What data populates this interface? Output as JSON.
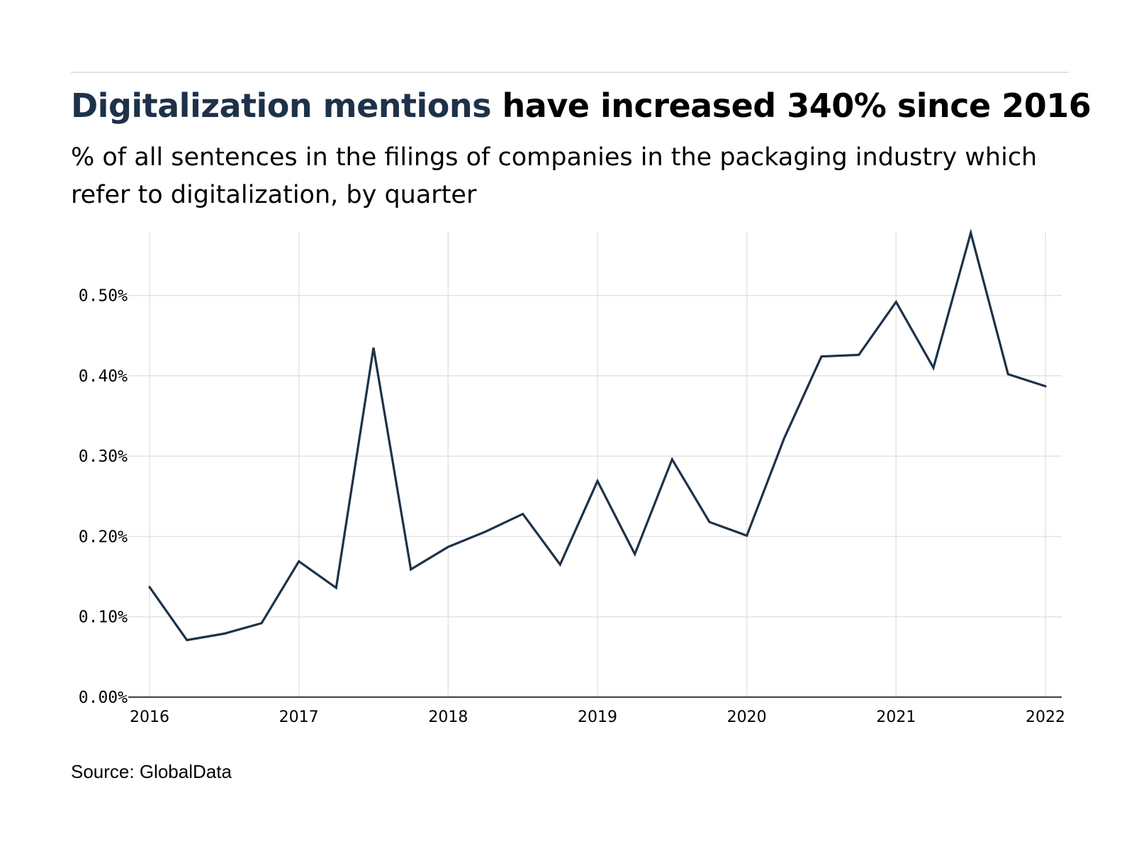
{
  "header": {
    "title_highlight": "Digitalization mentions",
    "title_rest": " have increased 340% since 2016",
    "subtitle": "% of all sentences in the filings of companies in the packaging industry which refer to digitalization, by quarter"
  },
  "footer": {
    "source": "Source: GlobalData"
  },
  "colors": {
    "line": "#1d3249",
    "grid": "#e3e3e3",
    "axis": "#000000"
  },
  "chart_data": {
    "type": "line",
    "title": "",
    "xlabel": "",
    "ylabel": "",
    "xlim": [
      2016,
      2022
    ],
    "ylim": [
      0,
      0.58
    ],
    "grid": true,
    "y_ticks": [
      0,
      0.1,
      0.2,
      0.3,
      0.4,
      0.5
    ],
    "y_tick_labels": [
      "0.00%",
      "0.10%",
      "0.20%",
      "0.30%",
      "0.40%",
      "0.50%"
    ],
    "x_ticks": [
      2016,
      2017,
      2018,
      2019,
      2020,
      2021,
      2022
    ],
    "x_tick_labels": [
      "2016",
      "2017",
      "2018",
      "2019",
      "2020",
      "2021",
      "2022"
    ],
    "series": [
      {
        "x": [
          2016.0,
          2016.25,
          2016.5,
          2016.75,
          2017.0,
          2017.25,
          2017.5,
          2017.75,
          2018.0,
          2018.25,
          2018.5,
          2018.75,
          2019.0,
          2019.25,
          2019.5,
          2019.75,
          2020.0,
          2020.25,
          2020.5,
          2020.75,
          2021.0,
          2021.25,
          2021.5,
          2021.75,
          2022.0
        ],
        "values": [
          0.137,
          0.071,
          0.079,
          0.092,
          0.169,
          0.136,
          0.435,
          0.159,
          0.187,
          0.206,
          0.228,
          0.165,
          0.269,
          0.178,
          0.296,
          0.218,
          0.201,
          0.322,
          0.424,
          0.426,
          0.492,
          0.41,
          0.578,
          0.402,
          0.387
        ]
      }
    ]
  }
}
